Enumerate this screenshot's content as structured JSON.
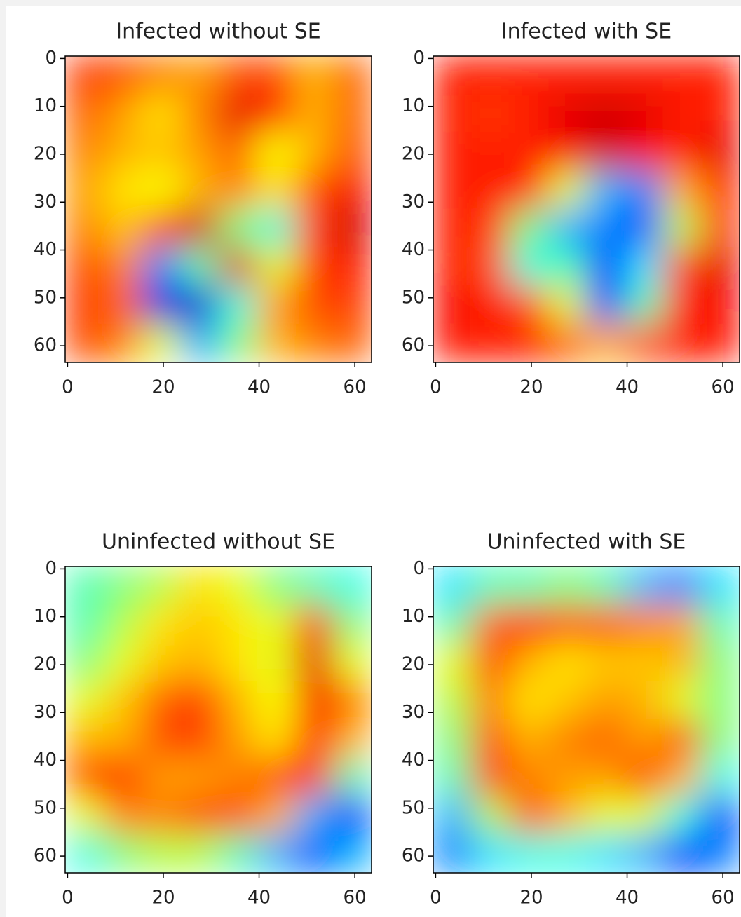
{
  "chart_data": [
    {
      "type": "heatmap",
      "title": "Infected without SE",
      "colormap": "jet",
      "zlim": [
        0,
        1
      ],
      "xlim": [
        -0.5,
        63.5
      ],
      "ylim": [
        63.5,
        -0.5
      ],
      "xticks": [
        0,
        20,
        40,
        60
      ],
      "yticks": [
        0,
        10,
        20,
        30,
        40,
        50,
        60
      ],
      "z": [
        [
          0.82,
          0.8,
          0.75,
          0.72,
          0.8,
          0.8,
          0.7,
          0.78
        ],
        [
          0.78,
          0.72,
          0.65,
          0.75,
          0.9,
          0.85,
          0.7,
          0.78
        ],
        [
          0.75,
          0.7,
          0.68,
          0.72,
          0.78,
          0.62,
          0.7,
          0.8
        ],
        [
          0.72,
          0.65,
          0.62,
          0.7,
          0.75,
          0.65,
          0.8,
          0.88
        ],
        [
          0.75,
          0.68,
          0.8,
          0.92,
          0.5,
          0.4,
          0.82,
          0.92
        ],
        [
          0.8,
          0.75,
          0.25,
          0.45,
          0.9,
          0.6,
          0.82,
          0.85
        ],
        [
          0.82,
          0.78,
          0.1,
          0.08,
          0.4,
          0.72,
          0.8,
          0.82
        ],
        [
          0.8,
          0.75,
          0.6,
          0.3,
          0.5,
          0.7,
          0.75,
          0.78
        ]
      ]
    },
    {
      "type": "heatmap",
      "title": "Infected with SE",
      "colormap": "jet",
      "zlim": [
        0,
        1
      ],
      "xlim": [
        -0.5,
        63.5
      ],
      "ylim": [
        63.5,
        -0.5
      ],
      "xticks": [
        0,
        20,
        40,
        60
      ],
      "yticks": [
        0,
        10,
        20,
        30,
        40,
        50,
        60
      ],
      "z": [
        [
          0.85,
          0.85,
          0.85,
          0.85,
          0.85,
          0.85,
          0.85,
          0.85
        ],
        [
          0.85,
          0.82,
          0.85,
          0.9,
          0.92,
          0.9,
          0.85,
          0.85
        ],
        [
          0.85,
          0.85,
          0.85,
          0.88,
          0.92,
          0.88,
          0.85,
          0.9
        ],
        [
          0.85,
          0.85,
          0.85,
          0.6,
          0.3,
          0.25,
          0.7,
          0.85
        ],
        [
          0.85,
          0.82,
          0.5,
          0.3,
          0.25,
          0.2,
          0.55,
          0.85
        ],
        [
          0.85,
          0.8,
          0.4,
          0.45,
          0.15,
          0.35,
          0.8,
          0.9
        ],
        [
          0.88,
          0.85,
          0.8,
          0.6,
          0.15,
          0.45,
          0.85,
          0.88
        ],
        [
          0.85,
          0.85,
          0.85,
          0.78,
          0.7,
          0.8,
          0.85,
          0.85
        ]
      ]
    },
    {
      "type": "heatmap",
      "title": "Uninfected without SE",
      "colormap": "jet",
      "zlim": [
        0,
        1
      ],
      "xlim": [
        -0.5,
        63.5
      ],
      "ylim": [
        63.5,
        -0.5
      ],
      "xticks": [
        0,
        20,
        40,
        60
      ],
      "yticks": [
        0,
        10,
        20,
        30,
        40,
        50,
        60
      ],
      "z": [
        [
          0.45,
          0.5,
          0.55,
          0.65,
          0.6,
          0.5,
          0.45,
          0.4
        ],
        [
          0.45,
          0.55,
          0.65,
          0.68,
          0.65,
          0.6,
          0.85,
          0.5
        ],
        [
          0.5,
          0.6,
          0.68,
          0.7,
          0.65,
          0.6,
          0.9,
          0.6
        ],
        [
          0.6,
          0.68,
          0.78,
          0.82,
          0.7,
          0.62,
          0.88,
          0.75
        ],
        [
          0.7,
          0.7,
          0.8,
          0.82,
          0.72,
          0.65,
          0.85,
          0.7
        ],
        [
          0.8,
          0.85,
          0.72,
          0.72,
          0.75,
          0.8,
          0.85,
          0.45
        ],
        [
          0.6,
          0.75,
          0.75,
          0.8,
          0.8,
          0.7,
          0.3,
          0.15
        ],
        [
          0.4,
          0.5,
          0.55,
          0.55,
          0.45,
          0.3,
          0.2,
          0.3
        ]
      ]
    },
    {
      "type": "heatmap",
      "title": "Uninfected with SE",
      "colormap": "jet",
      "zlim": [
        0,
        1
      ],
      "xlim": [
        -0.5,
        63.5
      ],
      "ylim": [
        63.5,
        -0.5
      ],
      "xticks": [
        0,
        20,
        40,
        60
      ],
      "yticks": [
        0,
        10,
        20,
        30,
        40,
        50,
        60
      ],
      "z": [
        [
          0.35,
          0.45,
          0.45,
          0.5,
          0.45,
          0.3,
          0.25,
          0.35
        ],
        [
          0.45,
          0.78,
          0.85,
          0.8,
          0.8,
          0.75,
          0.72,
          0.45
        ],
        [
          0.6,
          0.82,
          0.7,
          0.65,
          0.68,
          0.68,
          0.7,
          0.5
        ],
        [
          0.55,
          0.75,
          0.65,
          0.68,
          0.72,
          0.7,
          0.6,
          0.5
        ],
        [
          0.5,
          0.8,
          0.7,
          0.75,
          0.78,
          0.72,
          0.8,
          0.5
        ],
        [
          0.45,
          0.82,
          0.75,
          0.72,
          0.72,
          0.82,
          0.7,
          0.4
        ],
        [
          0.3,
          0.55,
          0.8,
          0.7,
          0.6,
          0.6,
          0.4,
          0.15
        ],
        [
          0.25,
          0.35,
          0.4,
          0.4,
          0.35,
          0.3,
          0.15,
          0.25
        ]
      ]
    }
  ]
}
